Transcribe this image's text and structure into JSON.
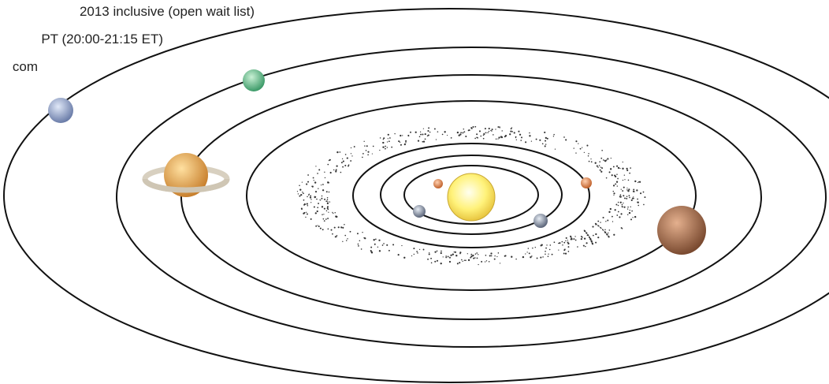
{
  "header": {
    "lines": [
      "2013 inclusive (open wait list)",
      "PT (20:00-21:15 ET)",
      "com"
    ]
  }
}
